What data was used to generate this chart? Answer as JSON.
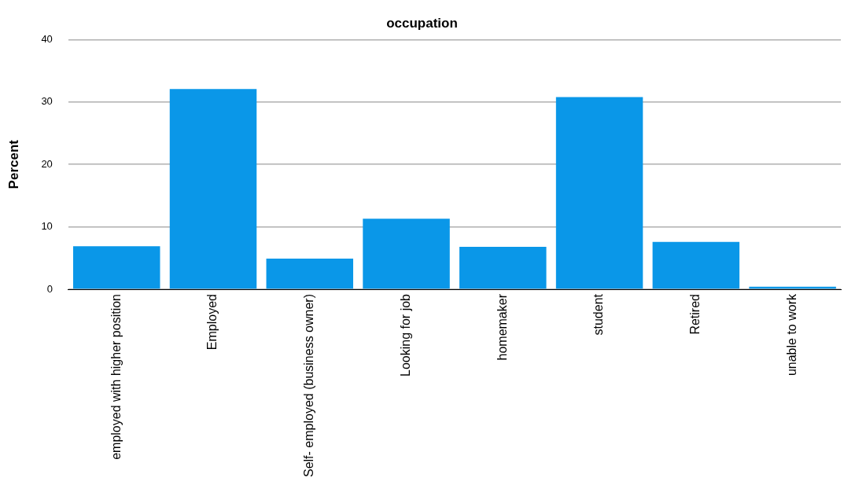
{
  "chart_data": {
    "type": "bar",
    "title": "occupation",
    "ylabel": "Percent",
    "categories": [
      "employed with higher position",
      "Employed",
      "Self- employed (business owner)",
      "Looking for job",
      "homemaker",
      "student",
      "Retired",
      "unable to work"
    ],
    "values": [
      6.9,
      32.1,
      4.9,
      11.3,
      6.8,
      30.8,
      7.6,
      0.4
    ],
    "color": "#0a97e8",
    "ylim": [
      0,
      40
    ],
    "yticks": [
      0,
      10,
      20,
      30,
      40
    ],
    "grid": "y",
    "legend": false
  }
}
